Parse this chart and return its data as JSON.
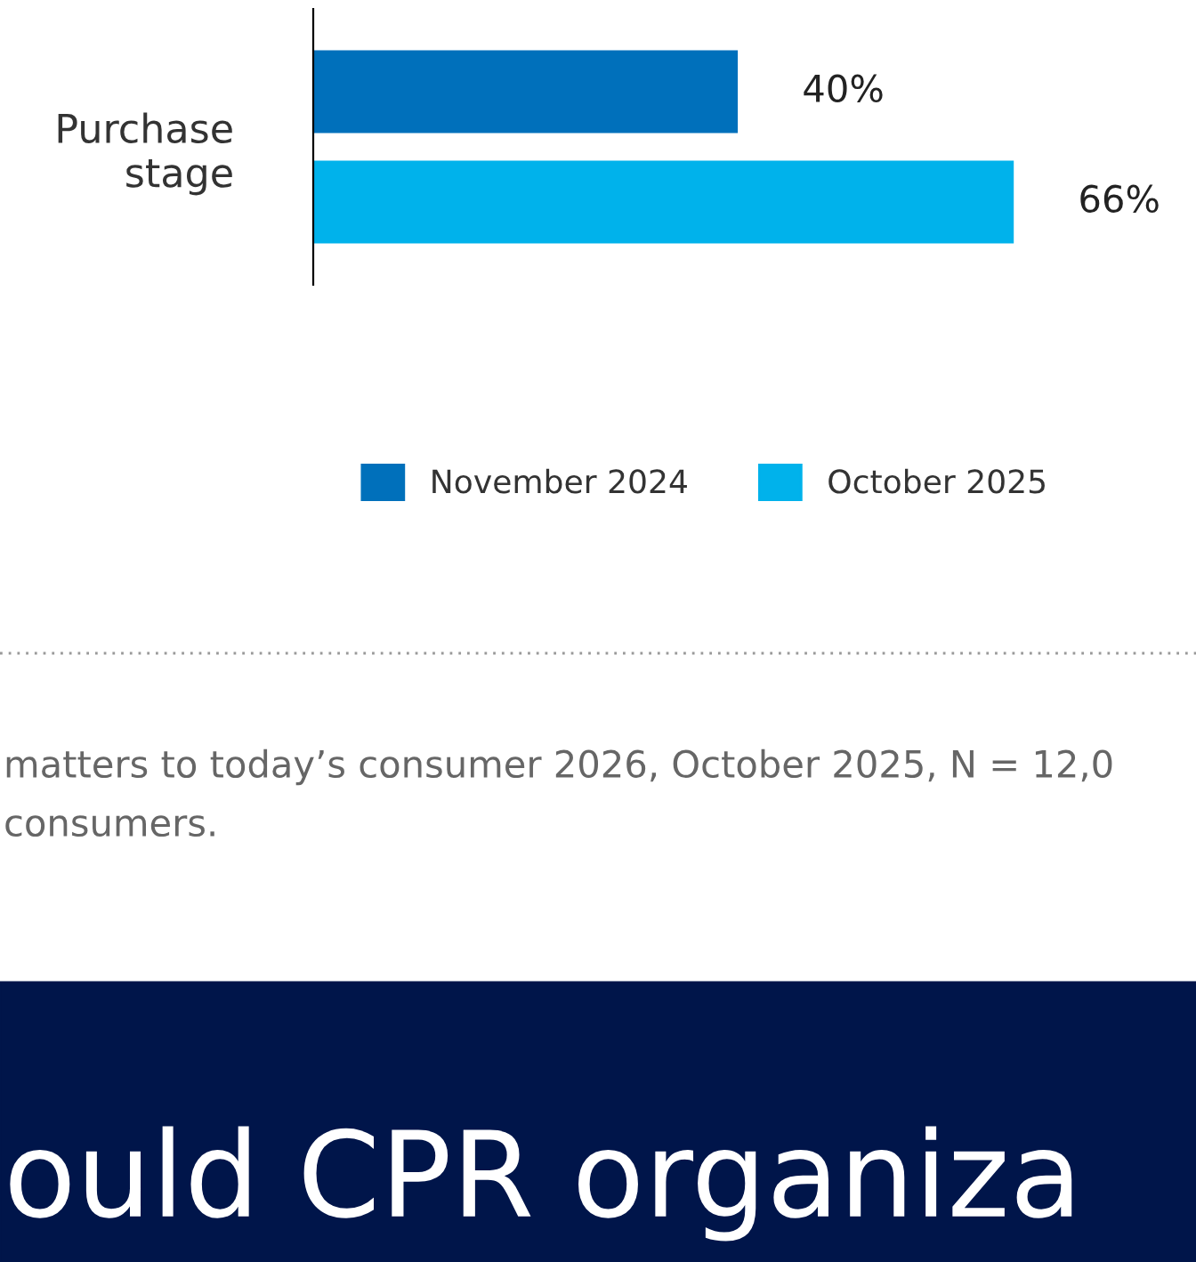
{
  "chart_data": {
    "type": "bar",
    "orientation": "horizontal",
    "categories": [
      "Purchase\nstage"
    ],
    "series": [
      {
        "name": "November 2024",
        "color": "#0070bb",
        "values": [
          40
        ],
        "value_labels": [
          "40%"
        ]
      },
      {
        "name": "October 2025",
        "color": "#00b2eb",
        "values": [
          66
        ],
        "value_labels": [
          "66%"
        ]
      }
    ],
    "legend": "bottom",
    "grid": false,
    "annotations": [
      "matters to today’s consumer 2026, October 2025, N = 12,0",
      "consumers.",
      "ould CPR organiza"
    ]
  }
}
